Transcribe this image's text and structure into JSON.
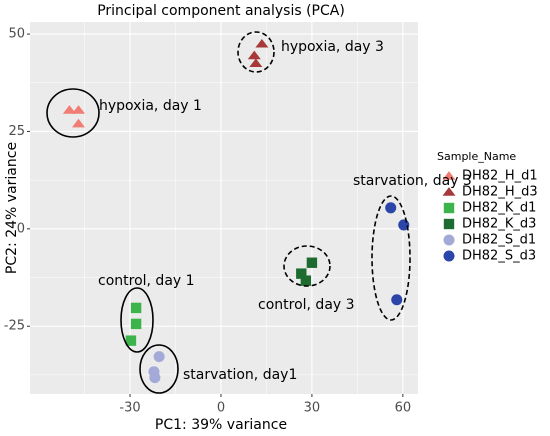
{
  "chart_data": {
    "type": "scatter",
    "title": "Principal component analysis (PCA)",
    "x_label": "PC1: 39% variance",
    "y_label": "PC2: 24% variance",
    "xlim": [
      -63,
      65
    ],
    "ylim": [
      -42.4,
      53.1
    ],
    "xticks": [
      -30,
      0,
      30,
      60
    ],
    "yticks": [
      -25,
      0,
      25,
      50
    ],
    "grid": true,
    "legend_title": "Sample_Name",
    "legend_position": "right",
    "series": [
      {
        "name": "DH82_H_d1",
        "color": "#f07c74",
        "marker": "triangle",
        "x": [
          -50,
          -47,
          -47
        ],
        "values": [
          30.5,
          30.5,
          27
        ]
      },
      {
        "name": "DH82_H_d3",
        "color": "#a63a3a",
        "marker": "triangle",
        "x": [
          13.5,
          11,
          11.5
        ],
        "values": [
          47.5,
          44.5,
          42.5
        ]
      },
      {
        "name": "DH82_K_d1",
        "color": "#3cb44b",
        "marker": "square",
        "x": [
          -28,
          -28,
          -29.7
        ],
        "values": [
          -20.3,
          -24.4,
          -28.7
        ]
      },
      {
        "name": "DH82_K_d3",
        "color": "#1d6b2e",
        "marker": "square",
        "x": [
          30,
          26.5,
          28
        ],
        "values": [
          -8.7,
          -11.5,
          -13.3
        ]
      },
      {
        "name": "DH82_S_d1",
        "color": "#a3aad8",
        "marker": "circle",
        "x": [
          -20.4,
          -22.1,
          -21.8
        ],
        "values": [
          -32.8,
          -36.7,
          -38.2
        ]
      },
      {
        "name": "DH82_S_d3",
        "color": "#2b45a8",
        "marker": "circle",
        "x": [
          56,
          60.3,
          58
        ],
        "values": [
          5.4,
          1,
          -18.2
        ]
      }
    ],
    "annotations": [
      "hypoxia, day 3",
      "hypoxia, day 1",
      "starvation, day 3",
      "control, day 1",
      "control, day 3",
      "starvation, day1"
    ]
  }
}
